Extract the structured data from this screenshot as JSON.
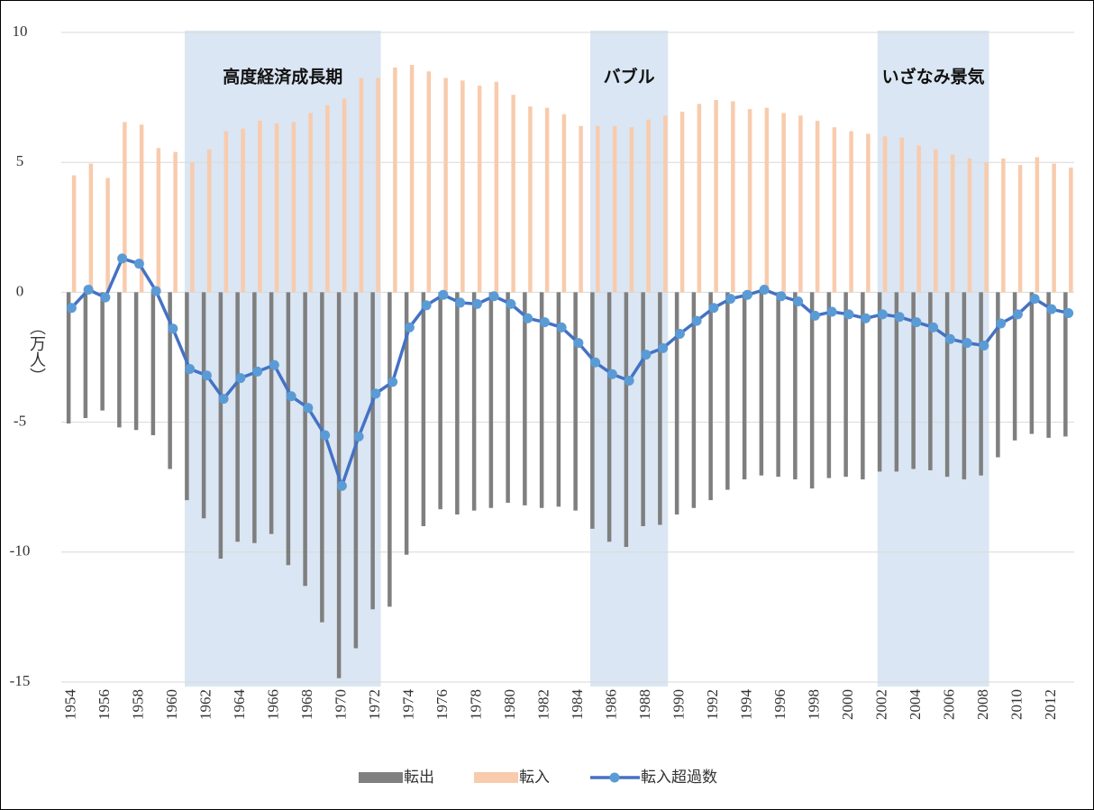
{
  "chart_data": {
    "type": "bar_line",
    "y_axis_label": "（万人）",
    "categories": [
      "1954",
      null,
      "1956",
      null,
      "1958",
      null,
      "1960",
      null,
      "1962",
      null,
      "1964",
      null,
      "1966",
      null,
      "1968",
      null,
      "1970",
      null,
      "1972",
      null,
      "1974",
      null,
      "1976",
      null,
      "1978",
      null,
      "1980",
      null,
      "1982",
      null,
      "1984",
      null,
      "1986",
      null,
      "1988",
      null,
      "1990",
      null,
      "1992",
      null,
      "1994",
      null,
      "1996",
      null,
      "1998",
      null,
      "2000",
      null,
      "2002",
      null,
      "2004",
      null,
      "2006",
      null,
      "2008",
      null,
      "2010",
      null,
      "2012",
      null
    ],
    "series": [
      {
        "name": "転出",
        "type": "bar",
        "color": "#7f7f7f",
        "values": [
          -5.05,
          -4.84,
          -4.55,
          -5.2,
          -5.3,
          -5.5,
          -6.8,
          -8.0,
          -8.7,
          -10.25,
          -9.6,
          -9.65,
          -9.3,
          -10.5,
          -11.3,
          -12.7,
          -14.85,
          -13.7,
          -12.2,
          -12.1,
          -10.1,
          -9.0,
          -8.35,
          -8.55,
          -8.4,
          -8.3,
          -8.1,
          -8.2,
          -8.3,
          -8.25,
          -8.4,
          -9.1,
          -9.6,
          -9.8,
          -9.0,
          -8.95,
          -8.55,
          -8.3,
          -8.0,
          -7.6,
          -7.2,
          -7.05,
          -7.1,
          -7.2,
          -7.55,
          -7.15,
          -7.1,
          -7.2,
          -6.9,
          -6.9,
          -6.8,
          -6.85,
          -7.1,
          -7.2,
          -7.05,
          -6.35,
          -5.7,
          -5.45,
          -5.6,
          -5.55
        ]
      },
      {
        "name": "転入",
        "type": "bar",
        "color": "#f8cbad",
        "values": [
          4.5,
          4.95,
          4.4,
          6.55,
          6.45,
          5.55,
          5.4,
          5.0,
          5.5,
          6.2,
          6.3,
          6.6,
          6.5,
          6.55,
          6.9,
          7.2,
          7.45,
          8.25,
          8.25,
          8.65,
          8.75,
          8.5,
          8.25,
          8.15,
          7.95,
          8.1,
          7.6,
          7.15,
          7.1,
          6.85,
          6.4,
          6.4,
          6.4,
          6.35,
          6.65,
          6.8,
          6.95,
          7.25,
          7.4,
          7.35,
          7.05,
          7.1,
          6.9,
          6.8,
          6.6,
          6.35,
          6.2,
          6.1,
          6.0,
          5.95,
          5.65,
          5.5,
          5.3,
          5.15,
          5.0,
          5.15,
          4.9,
          5.2,
          4.95,
          4.8
        ]
      },
      {
        "name": "転入超過数",
        "type": "line",
        "color": "#4472c4",
        "marker_color": "#5b9bd5",
        "values": [
          -0.6,
          0.1,
          -0.2,
          1.3,
          1.1,
          0.05,
          -1.4,
          -2.95,
          -3.2,
          -4.1,
          -3.3,
          -3.05,
          -2.8,
          -4.0,
          -4.45,
          -5.5,
          -7.45,
          -5.55,
          -3.9,
          -3.45,
          -1.35,
          -0.5,
          -0.1,
          -0.4,
          -0.45,
          -0.15,
          -0.45,
          -1.0,
          -1.15,
          -1.35,
          -1.95,
          -2.7,
          -3.15,
          -3.4,
          -2.4,
          -2.15,
          -1.6,
          -1.1,
          -0.6,
          -0.25,
          -0.1,
          0.1,
          -0.15,
          -0.35,
          -0.9,
          -0.75,
          -0.85,
          -1.0,
          -0.85,
          -0.95,
          -1.15,
          -1.35,
          -1.8,
          -1.95,
          -2.05,
          -1.2,
          -0.85,
          -0.25,
          -0.65,
          -0.8
        ]
      }
    ],
    "periods": [
      {
        "label": "高度経済成長期",
        "start": 7,
        "end": 18,
        "color": "#dae6f3"
      },
      {
        "label": "バブル",
        "start": 31,
        "end": 35,
        "color": "#dae6f3"
      },
      {
        "label": "いざなみ景気",
        "start": 48,
        "end": 54,
        "color": "#dae6f3"
      }
    ],
    "ylim": [
      -15,
      10
    ],
    "yticks": [
      -15,
      -10,
      -5,
      0,
      5,
      10
    ],
    "grid": true,
    "legend": "bottom"
  }
}
